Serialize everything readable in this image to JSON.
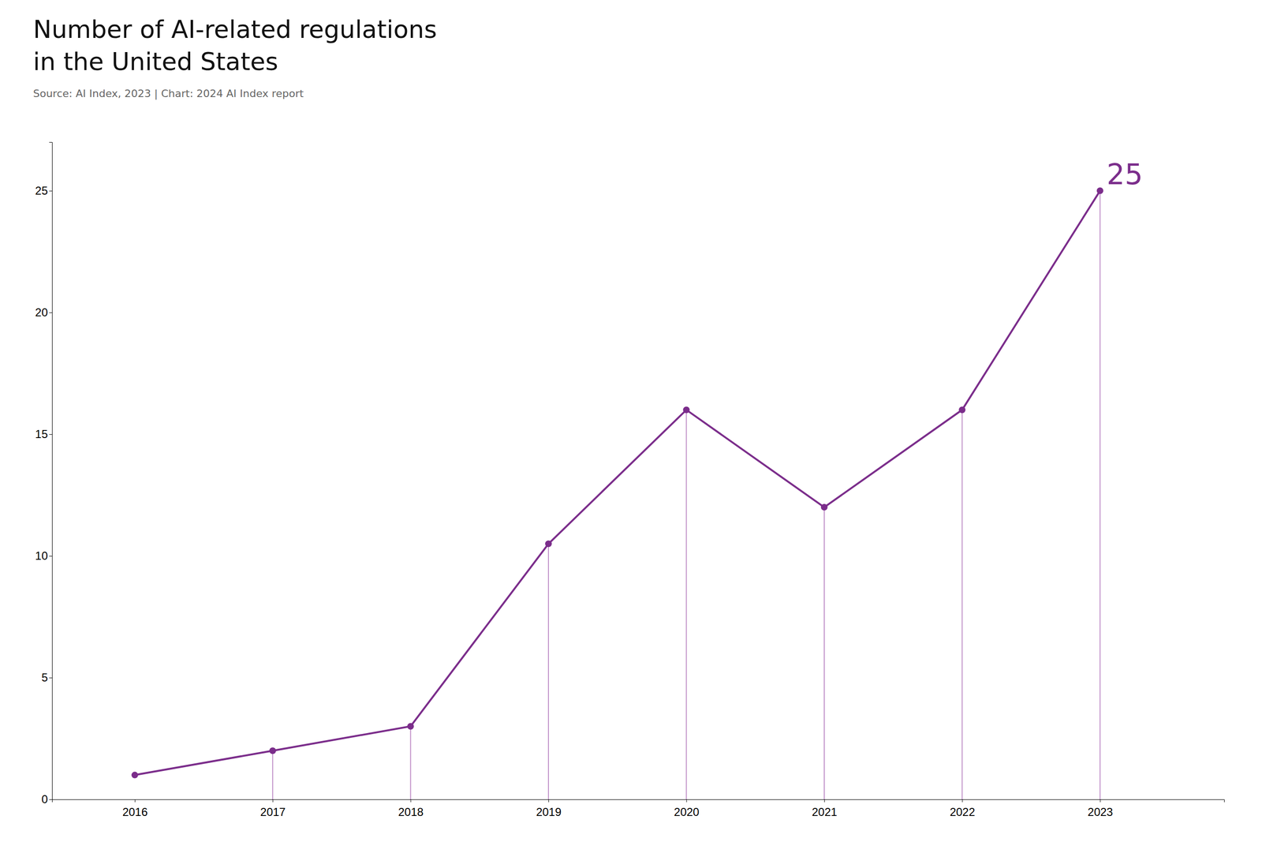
{
  "chart_data": {
    "type": "line",
    "title": "Number of AI-related regulations",
    "subtitle": "in the United States",
    "source": "Source: AI Index, 2023 | Chart: 2024 AI Index report",
    "x": [
      2016,
      2017,
      2018,
      2019,
      2020,
      2021,
      2022,
      2023
    ],
    "series": [
      {
        "type": "line",
        "color": "#7B2D8B",
        "marker": "circle",
        "values": [
          1,
          2,
          3,
          10.5,
          16,
          12,
          16,
          25
        ]
      },
      {
        "type": "stem",
        "color": "#C090C8",
        "values": [
          null,
          2,
          3,
          10.5,
          16,
          12,
          16,
          25
        ]
      }
    ],
    "annotations": [
      {
        "text": "25",
        "x": 2023,
        "y": 25
      }
    ],
    "xlim": [
      2015.4,
      2023.9
    ],
    "xticks": [
      2016,
      2017,
      2018,
      2019,
      2020,
      2021,
      2022,
      2023
    ],
    "ylim": [
      0,
      27
    ],
    "yticks": [
      0,
      5,
      10,
      15,
      20,
      25
    ],
    "grid": false
  }
}
